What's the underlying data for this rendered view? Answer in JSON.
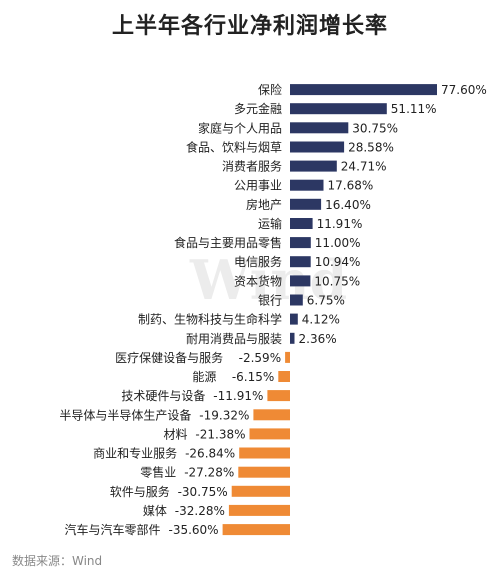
{
  "title": "上半年各行业净利润增长率",
  "source": "数据来源：Wind",
  "watermark": "Wind",
  "colors": {
    "positive": "#2c3763",
    "negative": "#ef8a35",
    "text": "#222222"
  },
  "chart_data": {
    "type": "bar",
    "orientation": "horizontal",
    "title": "上半年各行业净利润增长率",
    "unit": "%",
    "xlim": [
      -35.6,
      77.6
    ],
    "grid": false,
    "categories": [
      "保险",
      "多元金融",
      "家庭与个人用品",
      "食品、饮料与烟草",
      "消费者服务",
      "公用事业",
      "房地产",
      "运输",
      "食品与主要用品零售",
      "电信服务",
      "资本货物",
      "银行",
      "制药、生物科技与生命科学",
      "耐用消费品与服装",
      "医疗保健设备与服务",
      "能源",
      "技术硬件与设备",
      "半导体与半导体生产设备",
      "材料",
      "商业和专业服务",
      "零售业",
      "软件与服务",
      "媒体",
      "汽车与汽车零部件"
    ],
    "values": [
      77.6,
      51.11,
      30.75,
      28.58,
      24.71,
      17.68,
      16.4,
      11.91,
      11.0,
      10.94,
      10.75,
      6.75,
      4.12,
      2.36,
      -2.59,
      -6.15,
      -11.91,
      -19.32,
      -21.38,
      -26.84,
      -27.28,
      -30.75,
      -32.28,
      -35.6
    ],
    "labels": [
      "77.60%",
      "51.11%",
      "30.75%",
      "28.58%",
      "24.71%",
      "17.68%",
      "16.40%",
      "11.91%",
      "11.00%",
      "10.94%",
      "10.75%",
      "6.75%",
      "4.12%",
      "2.36%",
      "-2.59%",
      "-6.15%",
      "-11.91%",
      "-19.32%",
      "-21.38%",
      "-26.84%",
      "-27.28%",
      "-30.75%",
      "-32.28%",
      "-35.60%"
    ]
  }
}
